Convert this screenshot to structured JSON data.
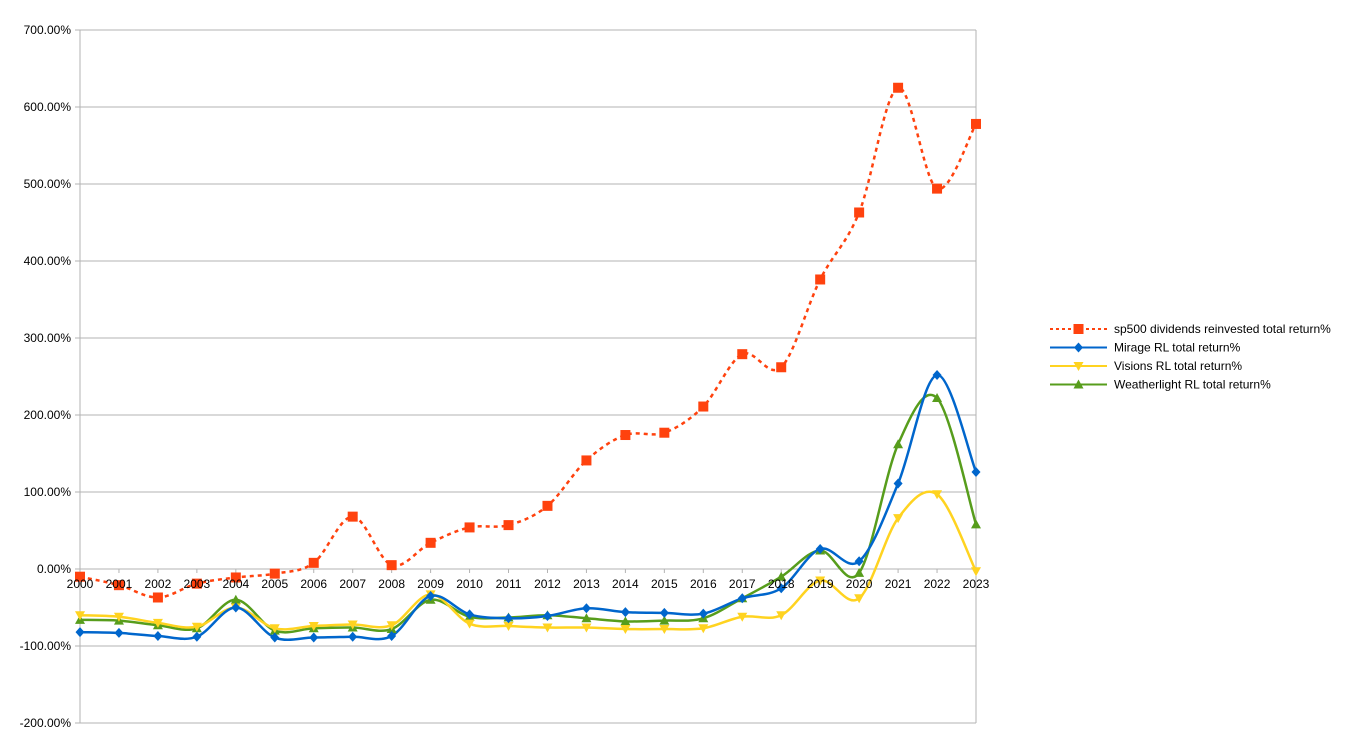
{
  "chart_data": {
    "type": "line",
    "title": "",
    "xlabel": "",
    "ylabel": "",
    "ylim": [
      -200,
      700
    ],
    "yticks": [
      -200,
      -100,
      0,
      100,
      200,
      300,
      400,
      500,
      600,
      700
    ],
    "ytick_labels": [
      "-200.00%",
      "-100.00%",
      "0.00%",
      "100.00%",
      "200.00%",
      "300.00%",
      "400.00%",
      "500.00%",
      "600.00%",
      "700.00%"
    ],
    "grid": "horizontal",
    "legend_position": "right",
    "categories": [
      "2000",
      "2001",
      "2002",
      "2003",
      "2004",
      "2005",
      "2006",
      "2007",
      "2008",
      "2009",
      "2010",
      "2011",
      "2012",
      "2013",
      "2014",
      "2015",
      "2016",
      "2017",
      "2018",
      "2019",
      "2020",
      "2021",
      "2022",
      "2023"
    ],
    "series": [
      {
        "name": "sp500 dividends reinvested total return%",
        "color": "#ff420e",
        "dash": "dotted",
        "marker": "square",
        "values": [
          -10,
          -21,
          -37,
          -19,
          -11,
          -6,
          8,
          68,
          5,
          34,
          54,
          57,
          82,
          141,
          174,
          177,
          211,
          279,
          262,
          376,
          463,
          625,
          494,
          578
        ]
      },
      {
        "name": "Mirage RL total return%",
        "color": "#0066cc",
        "dash": "solid",
        "marker": "diamond",
        "values": [
          -82,
          -83,
          -87,
          -88,
          -50,
          -89,
          -89,
          -88,
          -87,
          -35,
          -59,
          -64,
          -61,
          -51,
          -56,
          -57,
          -58,
          -38,
          -25,
          26,
          10,
          111,
          252,
          126
        ]
      },
      {
        "name": "Visions RL total return%",
        "color": "#ffd320",
        "dash": "solid",
        "marker": "triangle-down",
        "values": [
          -60,
          -62,
          -70,
          -75,
          -50,
          -77,
          -74,
          -72,
          -73,
          -33,
          -71,
          -74,
          -76,
          -76,
          -78,
          -78,
          -77,
          -62,
          -60,
          -15,
          -38,
          66,
          97,
          -3
        ]
      },
      {
        "name": "Weatherlight RL total return%",
        "color": "#579d1c",
        "dash": "solid",
        "marker": "triangle-up",
        "values": [
          -66,
          -67,
          -73,
          -77,
          -40,
          -80,
          -77,
          -76,
          -78,
          -40,
          -62,
          -63,
          -60,
          -64,
          -68,
          -67,
          -64,
          -38,
          -10,
          24,
          -5,
          162,
          222,
          58
        ]
      }
    ]
  }
}
